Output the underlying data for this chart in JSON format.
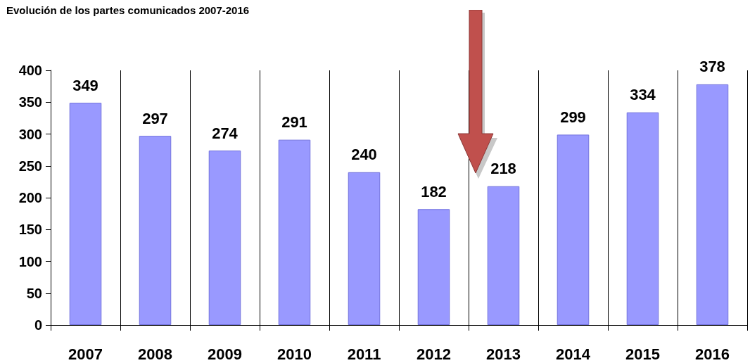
{
  "chart_data": {
    "type": "bar",
    "title": "Evolución de los partes comunicados 2007-2016",
    "categories": [
      "2007",
      "2008",
      "2009",
      "2010",
      "2011",
      "2012",
      "2013",
      "2014",
      "2015",
      "2016"
    ],
    "values": [
      349,
      297,
      274,
      291,
      240,
      182,
      218,
      299,
      334,
      378
    ],
    "color": "#9999ff",
    "ylim": [
      0,
      400
    ],
    "yticks": [
      0,
      50,
      100,
      150,
      200,
      250,
      300,
      350,
      400
    ],
    "grid": "x",
    "data_labels": true
  }
}
